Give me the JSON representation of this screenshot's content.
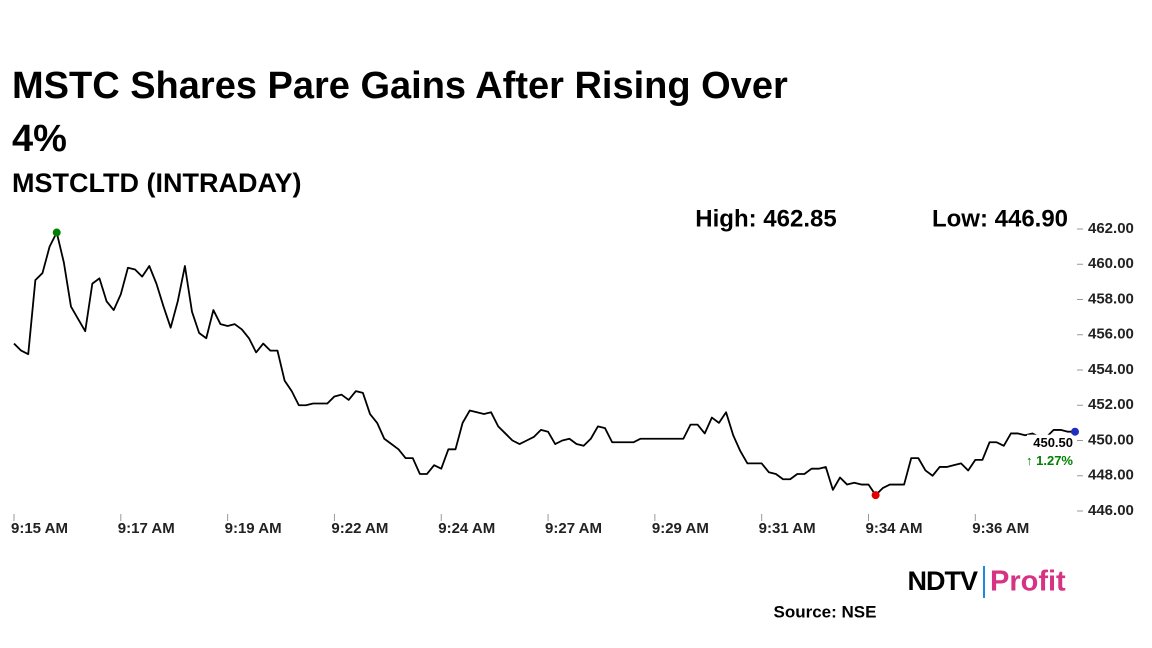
{
  "chart_data": {
    "type": "line",
    "title": "MSTC Shares Pare Gains After Rising Over 4%",
    "subtitle": "MSTCLTD (INTRADAY)",
    "high_label": "High: 462.85",
    "low_label": "Low: 446.90",
    "last_label": "450.50",
    "change_label": "↑ 1.27%",
    "source": "Source: NSE",
    "logo": [
      "NDTV",
      "Profit"
    ],
    "color": "#000000",
    "high_color": "#008000",
    "low_color": "#e00000",
    "last_color": "#1f2fbf",
    "change_color": "#008000",
    "categories": [
      "9:15 AM",
      null,
      null,
      null,
      null,
      null,
      null,
      null,
      null,
      null,
      null,
      null,
      null,
      null,
      null,
      "9:17 AM",
      null,
      null,
      null,
      null,
      null,
      null,
      null,
      null,
      null,
      null,
      null,
      null,
      null,
      null,
      "9:19 AM",
      null,
      null,
      null,
      null,
      null,
      null,
      null,
      null,
      null,
      null,
      null,
      null,
      null,
      null,
      "9:22 AM",
      null,
      null,
      null,
      null,
      null,
      null,
      null,
      null,
      null,
      null,
      null,
      null,
      null,
      null,
      "9:24 AM",
      null,
      null,
      null,
      null,
      null,
      null,
      null,
      null,
      null,
      null,
      null,
      null,
      null,
      null,
      "9:27 AM",
      null,
      null,
      null,
      null,
      null,
      null,
      null,
      null,
      null,
      null,
      null,
      null,
      null,
      null,
      "9:29 AM",
      null,
      null,
      null,
      null,
      null,
      null,
      null,
      null,
      null,
      null,
      null,
      null,
      null,
      null,
      "9:31 AM",
      null,
      null,
      null,
      null,
      null,
      null,
      null,
      null,
      null,
      null,
      null,
      null,
      null,
      null,
      "9:34 AM",
      null,
      null,
      null,
      null,
      null,
      null,
      null,
      null,
      null,
      null,
      null,
      null,
      null,
      null,
      "9:36 AM",
      null,
      null,
      null,
      null,
      null,
      null,
      null,
      null,
      null,
      null,
      null,
      null,
      null,
      null
    ],
    "values": [
      455.5,
      455.1,
      454.9,
      459.1,
      459.5,
      461.0,
      461.8,
      460.1,
      457.6,
      456.9,
      456.2,
      458.9,
      459.2,
      457.9,
      457.4,
      458.3,
      459.8,
      459.7,
      459.3,
      459.9,
      458.9,
      457.6,
      456.4,
      457.9,
      459.9,
      457.3,
      456.1,
      455.8,
      457.4,
      456.6,
      456.5,
      456.6,
      456.3,
      455.8,
      455.0,
      455.5,
      455.1,
      455.1,
      453.4,
      452.8,
      452.0,
      452.0,
      452.1,
      452.1,
      452.1,
      452.5,
      452.6,
      452.3,
      452.8,
      452.7,
      451.5,
      451.0,
      450.1,
      449.8,
      449.5,
      449.0,
      449.0,
      448.1,
      448.1,
      448.6,
      448.4,
      449.5,
      449.5,
      451.0,
      451.7,
      451.6,
      451.5,
      451.6,
      450.8,
      450.4,
      450.0,
      449.8,
      450.0,
      450.2,
      450.6,
      450.5,
      449.8,
      450.0,
      450.1,
      449.8,
      449.7,
      450.1,
      450.8,
      450.7,
      449.9,
      449.9,
      449.9,
      449.9,
      450.1,
      450.1,
      450.1,
      450.1,
      450.1,
      450.1,
      450.1,
      450.9,
      450.9,
      450.4,
      451.3,
      451.0,
      451.6,
      450.3,
      449.4,
      448.7,
      448.7,
      448.7,
      448.2,
      448.1,
      447.8,
      447.8,
      448.1,
      448.1,
      448.4,
      448.4,
      448.5,
      447.2,
      447.9,
      447.5,
      447.6,
      447.5,
      447.5,
      446.9,
      447.3,
      447.5,
      447.5,
      447.5,
      449.0,
      449.0,
      448.3,
      448.0,
      448.5,
      448.5,
      448.6,
      448.7,
      448.3,
      448.9,
      448.9,
      449.9,
      449.9,
      449.7,
      450.4,
      450.4,
      450.3,
      450.4,
      450.2,
      450.2,
      450.6,
      450.6,
      450.5,
      450.5
    ],
    "ylim": [
      446,
      462
    ],
    "yticks": [
      {
        "value": 446,
        "label": "446.00"
      },
      {
        "value": 448,
        "label": "448.00"
      },
      {
        "value": 450,
        "label": "450.00"
      },
      {
        "value": 452,
        "label": "452.00"
      },
      {
        "value": 454,
        "label": "454.00"
      },
      {
        "value": 456,
        "label": "456.00"
      },
      {
        "value": 458,
        "label": "458.00"
      },
      {
        "value": 460,
        "label": "460.00"
      },
      {
        "value": 462,
        "label": "462.00"
      }
    ]
  }
}
